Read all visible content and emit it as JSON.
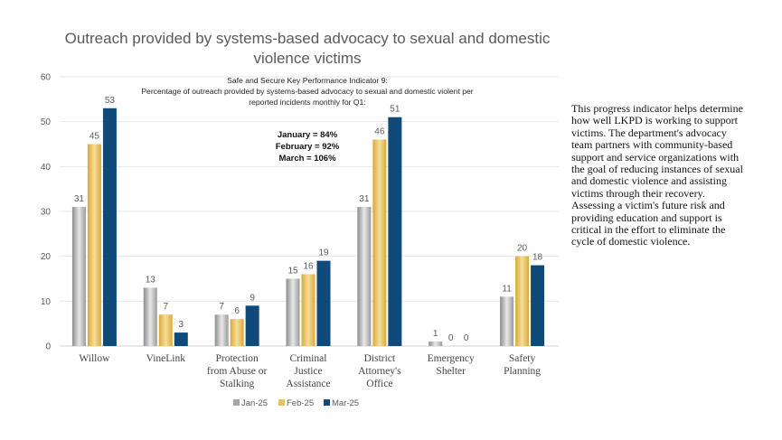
{
  "chart_data": {
    "type": "bar",
    "title": "Outreach provided by systems-based advocacy to sexual and domestic violence victims",
    "categories": [
      "Willow",
      "VineLink",
      "Protection from Abuse or Stalking",
      "Criminal Justice Assistance",
      "District Attorney's Office",
      "Emergency Shelter",
      "Safety Planning"
    ],
    "category_lines": [
      [
        "Willow"
      ],
      [
        "VineLink"
      ],
      [
        "Protection",
        "from Abuse or",
        "Stalking"
      ],
      [
        "Criminal",
        "Justice",
        "Assistance"
      ],
      [
        "District",
        "Attorney's",
        "Office"
      ],
      [
        "Emergency",
        "Shelter"
      ],
      [
        "Safety",
        "Planning"
      ]
    ],
    "series": [
      {
        "name": "Jan-25",
        "color": "#a6a6a6",
        "values": [
          31,
          13,
          7,
          15,
          31,
          1,
          11
        ]
      },
      {
        "name": "Feb-25",
        "color": "#e8c163",
        "values": [
          45,
          7,
          6,
          16,
          46,
          0,
          20
        ]
      },
      {
        "name": "Mar-25",
        "color": "#0f4a7a",
        "values": [
          53,
          3,
          9,
          19,
          51,
          0,
          18
        ]
      }
    ],
    "ylim": [
      0,
      60
    ],
    "yticks": [
      0,
      10,
      20,
      30,
      40,
      50,
      60
    ],
    "grid": true,
    "data_labels": true,
    "legend": "bottom",
    "annotation": {
      "heading": "Safe and Secure Key Performance Indicator 9:",
      "lines": [
        "Percentage of outreach provided by systems-based advocacy to sexual and domestic violent per",
        "reported incidents monthly for Q1:"
      ],
      "months": [
        "January = 84%",
        "February = 92%",
        "March = 106%"
      ]
    }
  },
  "side_text": {
    "p1": "This progress indicator helps determine how well LKPD is working to support victims. The department's advocacy team partners with community-based support and service organizations with the goal of reducing instances of sexual and domestic violence and assisting victims through their recovery.",
    "p2": "Assessing a victim's future risk and providing education and support is critical in the effort to eliminate the cycle of domestic violence."
  }
}
